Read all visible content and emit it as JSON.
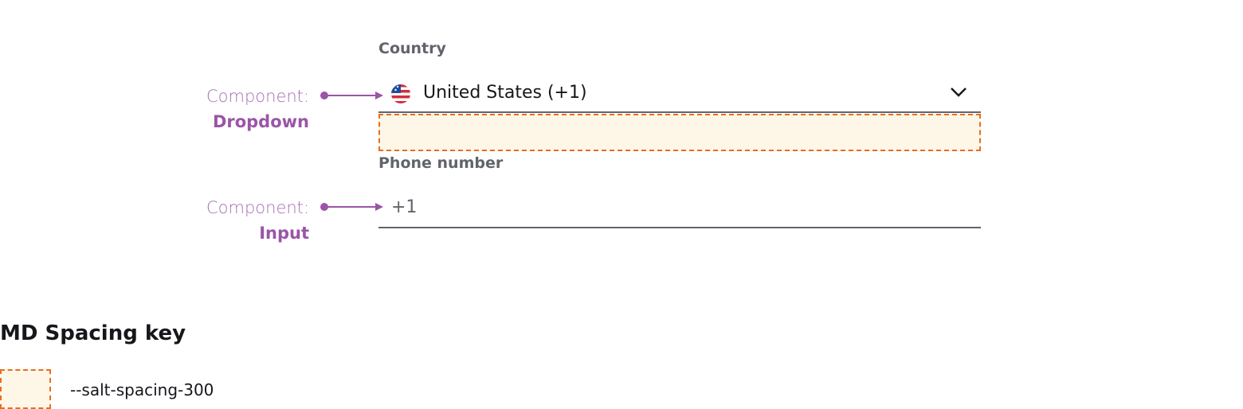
{
  "form": {
    "country_label": "Country",
    "country_value": "United States (+1)",
    "country_flag_icon": "us-flag-icon",
    "dropdown_icon": "chevron-down-icon",
    "phone_label": "Phone number",
    "phone_value": "+1"
  },
  "annotations": [
    {
      "prefix": "Component:",
      "name": "Dropdown"
    },
    {
      "prefix": "Component:",
      "name": "Input"
    }
  ],
  "key": {
    "title": "MD Spacing key",
    "items": [
      {
        "label": "--salt-spacing-300"
      }
    ]
  },
  "colors": {
    "annotation": "#9b54a8",
    "spacing_fill": "#fef7e8",
    "spacing_border": "#e86d1f"
  }
}
